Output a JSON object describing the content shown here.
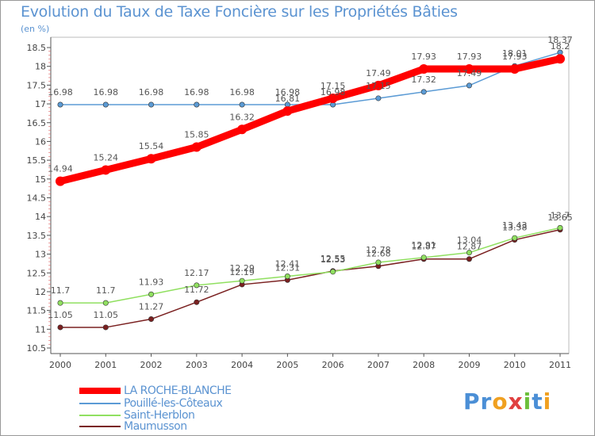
{
  "header": {
    "title": "Evolution du Taux de Taxe Foncière sur les Propriétés Bâties",
    "unit": "(en %)"
  },
  "logo": {
    "text": "Proxiti"
  },
  "chart_data": {
    "type": "line",
    "title": "Evolution du Taux de Taxe Foncière sur les Propriétés Bâties",
    "ylabel": "(en %)",
    "xlabel": "",
    "x": [
      "2000",
      "2001",
      "2002",
      "2003",
      "2004",
      "2005",
      "2006",
      "2007",
      "2008",
      "2009",
      "2010",
      "2011"
    ],
    "ylim": [
      10.5,
      18.5
    ],
    "yticks": [
      "10.5",
      "11",
      "11.5",
      "12",
      "12.5",
      "13",
      "13.5",
      "14",
      "14.5",
      "15",
      "15.5",
      "16",
      "16.5",
      "17",
      "17.5",
      "18",
      "18.5"
    ],
    "grid": false,
    "legend_position": "bottom-left",
    "series": [
      {
        "name": "LA ROCHE-BLANCHE",
        "color": "#ff0000",
        "values": [
          14.94,
          15.24,
          15.54,
          15.85,
          16.32,
          16.81,
          17.15,
          17.49,
          17.93,
          17.93,
          17.93,
          18.2
        ],
        "labels": [
          "14.94",
          "15.24",
          "15.54",
          "15.85",
          "16.32",
          "16.81",
          "17.15",
          "17.49",
          "17.93",
          "17.93",
          "17.93",
          "18.2"
        ]
      },
      {
        "name": "Pouillé-les-Côteaux",
        "color": "#5b9bd5",
        "values": [
          16.98,
          16.98,
          16.98,
          16.98,
          16.98,
          16.98,
          16.98,
          17.15,
          17.32,
          17.49,
          18.01,
          18.37
        ],
        "labels": [
          "16.98",
          "16.98",
          "16.98",
          "16.98",
          "16.98",
          "16.98",
          "16.98",
          "17.15",
          "17.32",
          "17.49",
          "18.01",
          "18.37"
        ]
      },
      {
        "name": "Saint-Herblon",
        "color": "#90e060",
        "values": [
          11.7,
          11.7,
          11.93,
          12.17,
          12.29,
          12.41,
          12.53,
          12.78,
          12.91,
          13.04,
          13.43,
          13.7
        ],
        "labels": [
          "11.7",
          "11.7",
          "11.93",
          "12.17",
          "12.29",
          "12.41",
          "12.53",
          "12.78",
          "12.91",
          "13.04",
          "13.43",
          "13.7"
        ]
      },
      {
        "name": "Maumusson",
        "color": "#7a2020",
        "values": [
          11.05,
          11.05,
          11.27,
          11.72,
          12.19,
          12.31,
          12.55,
          12.68,
          12.87,
          12.87,
          13.38,
          13.65
        ],
        "labels": [
          "11.05",
          "11.05",
          "11.27",
          "11.72",
          "12.19",
          "12.31",
          "12.55",
          "12.68",
          "12.87",
          "12.87",
          "13.38",
          "13.65"
        ]
      }
    ]
  }
}
